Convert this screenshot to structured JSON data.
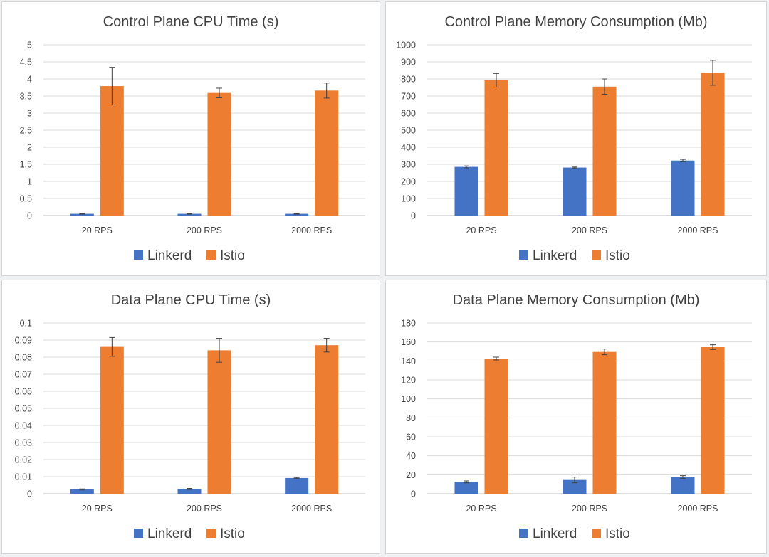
{
  "colors": {
    "linkerd": "#4472c4",
    "istio": "#ed7d31"
  },
  "chart_data": [
    {
      "type": "bar",
      "title": "Control Plane CPU Time (s)",
      "categories": [
        "20 RPS",
        "200 RPS",
        "2000 RPS"
      ],
      "series": [
        {
          "name": "Linkerd",
          "values": [
            0.05,
            0.05,
            0.05
          ],
          "error": [
            0.01,
            0.01,
            0.01
          ]
        },
        {
          "name": "Istio",
          "values": [
            3.79,
            3.59,
            3.66
          ],
          "error": [
            0.55,
            0.14,
            0.22
          ]
        }
      ],
      "ylim": [
        0,
        5
      ],
      "yticks": [
        "0",
        "0.5",
        "1",
        "1.5",
        "2",
        "2.5",
        "3",
        "3.5",
        "4",
        "4.5",
        "5"
      ],
      "grid": true,
      "legend": "bottom"
    },
    {
      "type": "bar",
      "title": "Control Plane Memory Consumption (Mb)",
      "categories": [
        "20 RPS",
        "200 RPS",
        "2000 RPS"
      ],
      "series": [
        {
          "name": "Linkerd",
          "values": [
            285,
            281,
            322
          ],
          "error": [
            6,
            3,
            7
          ]
        },
        {
          "name": "Istio",
          "values": [
            792,
            755,
            836
          ],
          "error": [
            40,
            45,
            73
          ]
        }
      ],
      "ylim": [
        0,
        1000
      ],
      "yticks": [
        "0",
        "100",
        "200",
        "300",
        "400",
        "500",
        "600",
        "700",
        "800",
        "900",
        "1000"
      ],
      "grid": true,
      "legend": "bottom"
    },
    {
      "type": "bar",
      "title": "Data Plane CPU Time (s)",
      "categories": [
        "20 RPS",
        "200 RPS",
        "2000 RPS"
      ],
      "series": [
        {
          "name": "Linkerd",
          "values": [
            0.0025,
            0.0028,
            0.0092
          ],
          "error": [
            0.0003,
            0.0003,
            0.0003
          ]
        },
        {
          "name": "Istio",
          "values": [
            0.086,
            0.084,
            0.087
          ],
          "error": [
            0.0055,
            0.007,
            0.004
          ]
        }
      ],
      "ylim": [
        0,
        0.1
      ],
      "yticks": [
        "0",
        "0.01",
        "0.02",
        "0.03",
        "0.04",
        "0.05",
        "0.06",
        "0.07",
        "0.08",
        "0.09",
        "0.1"
      ],
      "grid": true,
      "legend": "bottom"
    },
    {
      "type": "bar",
      "title": "Data Plane Memory Consumption (Mb)",
      "categories": [
        "20 RPS",
        "200 RPS",
        "2000 RPS"
      ],
      "series": [
        {
          "name": "Linkerd",
          "values": [
            12.5,
            14.5,
            17.5
          ],
          "error": [
            1,
            3,
            1.5
          ]
        },
        {
          "name": "Istio",
          "values": [
            142.5,
            149.5,
            154.5
          ],
          "error": [
            1.5,
            3,
            2.5
          ]
        }
      ],
      "ylim": [
        0,
        180
      ],
      "yticks": [
        "0",
        "20",
        "40",
        "60",
        "80",
        "100",
        "120",
        "140",
        "160",
        "180"
      ],
      "grid": true,
      "legend": "bottom"
    }
  ]
}
